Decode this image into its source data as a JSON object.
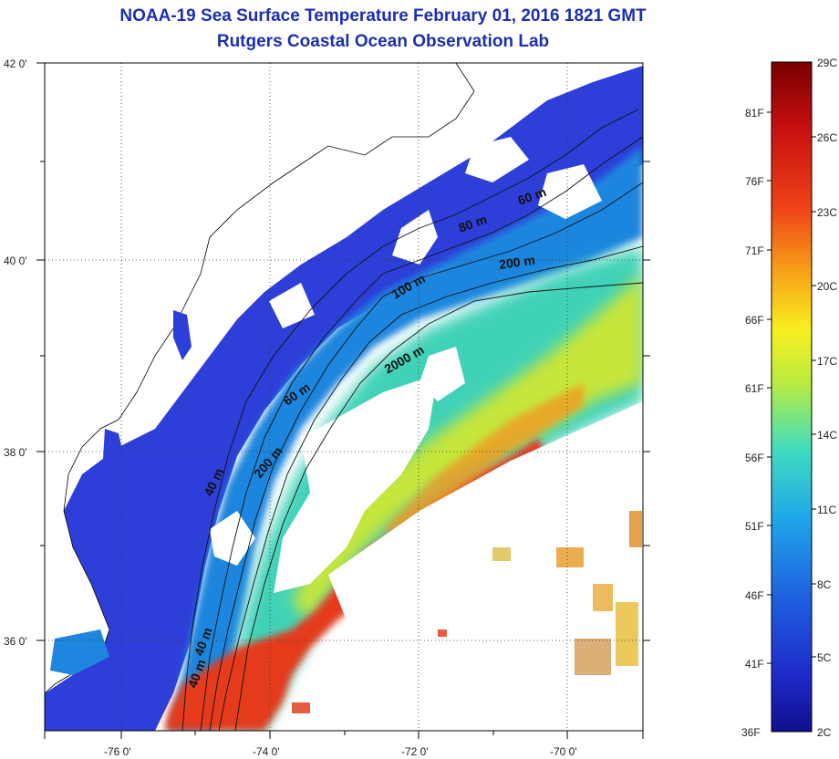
{
  "title": {
    "line1": "NOAA-19 Sea Surface Temperature February 01, 2016 1821 GMT",
    "line2": "Rutgers Coastal Ocean Observation Lab"
  },
  "axes": {
    "lat_labels": [
      "42 0'",
      "40 0'",
      "38 0'",
      "36 0'"
    ],
    "lon_labels": [
      "-76 0'",
      "-74 0'",
      "-72 0'",
      "-70 0'"
    ]
  },
  "contour_labels": [
    "40 m",
    "40 m",
    "40 m",
    "60 m",
    "60 m",
    "80 m",
    "200 m",
    "200 m",
    "100 m",
    "2000 m"
  ],
  "colorbar": {
    "celsius": [
      "29C",
      "26C",
      "23C",
      "20C",
      "17C",
      "14C",
      "11C",
      "8C",
      "5C",
      "2C"
    ],
    "fahrenheit": [
      "81F",
      "76F",
      "71F",
      "66F",
      "61F",
      "56F",
      "51F",
      "46F",
      "41F",
      "36F"
    ]
  },
  "colors": {
    "title": "#1c2fb0",
    "cold": "#2b2ad8",
    "cool": "#1f8fe0",
    "mid": "#3fd8c8",
    "warm": "#e8e030",
    "hot": "#e83018",
    "land": "#ffffff"
  }
}
